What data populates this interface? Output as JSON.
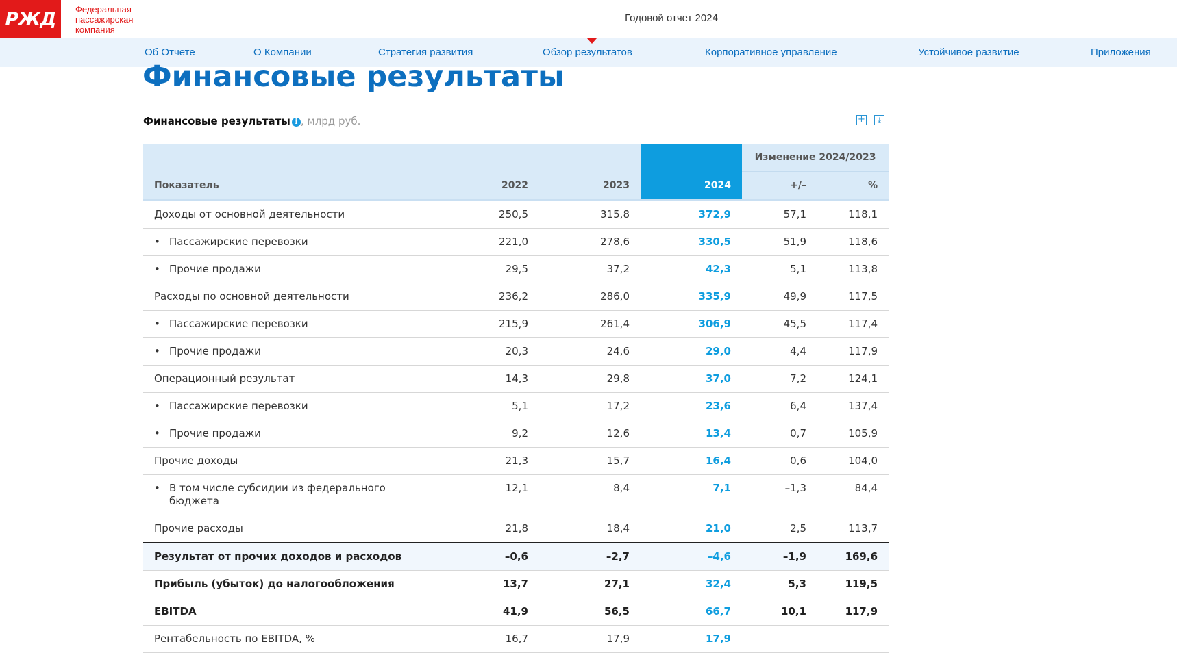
{
  "header": {
    "logo_text": "РЖД",
    "company_name": [
      "Федеральная",
      "пассажирская",
      "компания"
    ],
    "report_title": "Годовой отчет 2024"
  },
  "nav": {
    "items": [
      {
        "label": "Об Отчете"
      },
      {
        "label": "О Компании"
      },
      {
        "label": "Стратегия развития"
      },
      {
        "label": "Обзор результатов",
        "active": true
      },
      {
        "label": "Корпоративное управление"
      },
      {
        "label": "Устойчивое развитие"
      },
      {
        "label": "Приложения"
      }
    ]
  },
  "page": {
    "title": "Финансовые результаты"
  },
  "table_caption": {
    "title": "Финансовые результаты",
    "info_symbol": "i",
    "unit": ", млрд руб."
  },
  "tools": {
    "expand_symbol": "+",
    "download_symbol": "⤓"
  },
  "table": {
    "group_header": "Изменение 2024/2023",
    "columns": [
      "Показатель",
      "2022",
      "2023",
      "2024",
      "+/–",
      "%"
    ],
    "rows": [
      {
        "name": "Доходы от основной деятельности",
        "values": [
          "250,5",
          "315,8",
          "372,9",
          "57,1",
          "118,1"
        ],
        "sub": false
      },
      {
        "name": "Пассажирские перевозки",
        "values": [
          "221,0",
          "278,6",
          "330,5",
          "51,9",
          "118,6"
        ],
        "sub": true
      },
      {
        "name": "Прочие продажи",
        "values": [
          "29,5",
          "37,2",
          "42,3",
          "5,1",
          "113,8"
        ],
        "sub": true
      },
      {
        "name": "Расходы по основной деятельности",
        "values": [
          "236,2",
          "286,0",
          "335,9",
          "49,9",
          "117,5"
        ],
        "sub": false
      },
      {
        "name": "Пассажирские перевозки",
        "values": [
          "215,9",
          "261,4",
          "306,9",
          "45,5",
          "117,4"
        ],
        "sub": true
      },
      {
        "name": "Прочие продажи",
        "values": [
          "20,3",
          "24,6",
          "29,0",
          "4,4",
          "117,9"
        ],
        "sub": true
      },
      {
        "name": "Операционный результат",
        "values": [
          "14,3",
          "29,8",
          "37,0",
          "7,2",
          "124,1"
        ],
        "sub": false
      },
      {
        "name": "Пассажирские перевозки",
        "values": [
          "5,1",
          "17,2",
          "23,6",
          "6,4",
          "137,4"
        ],
        "sub": true
      },
      {
        "name": "Прочие продажи",
        "values": [
          "9,2",
          "12,6",
          "13,4",
          "0,7",
          "105,9"
        ],
        "sub": true
      },
      {
        "name": "Прочие доходы",
        "values": [
          "21,3",
          "15,7",
          "16,4",
          "0,6",
          "104,0"
        ],
        "sub": false
      },
      {
        "name": "В том числе субсидии из федерального бюджета",
        "values": [
          "12,1",
          "8,4",
          "7,1",
          "–1,3",
          "84,4"
        ],
        "sub": true
      },
      {
        "name": "Прочие расходы",
        "values": [
          "21,8",
          "18,4",
          "21,0",
          "2,5",
          "113,7"
        ],
        "sub": false
      },
      {
        "name": "Результат от прочих доходов и расходов",
        "values": [
          "–0,6",
          "–2,7",
          "–4,6",
          "–1,9",
          "169,6"
        ],
        "sub": false,
        "bold": true,
        "shaded": true,
        "sep": true
      },
      {
        "name": "Прибыль (убыток) до налогообложения",
        "values": [
          "13,7",
          "27,1",
          "32,4",
          "5,3",
          "119,5"
        ],
        "sub": false,
        "bold": true
      },
      {
        "name": "EBITDA",
        "values": [
          "41,9",
          "56,5",
          "66,7",
          "10,1",
          "117,9"
        ],
        "sub": false,
        "bold": true
      },
      {
        "name": "Рентабельность по EBITDA, %",
        "values": [
          "16,7",
          "17,9",
          "17,9",
          "",
          ""
        ],
        "sub": false
      }
    ]
  }
}
